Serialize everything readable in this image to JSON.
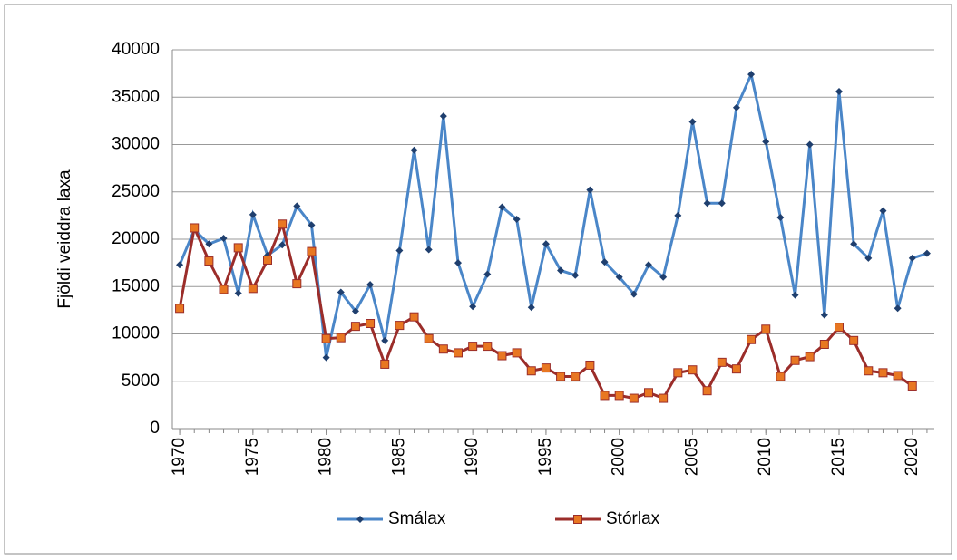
{
  "chart_data": {
    "type": "line",
    "y_label": "Fjöldi veiddra laxa",
    "x": [
      1970,
      1971,
      1972,
      1973,
      1974,
      1975,
      1976,
      1977,
      1978,
      1979,
      1980,
      1981,
      1982,
      1983,
      1984,
      1985,
      1986,
      1987,
      1988,
      1989,
      1990,
      1991,
      1992,
      1993,
      1994,
      1995,
      1996,
      1997,
      1998,
      1999,
      2000,
      2001,
      2002,
      2003,
      2004,
      2005,
      2006,
      2007,
      2008,
      2009,
      2010,
      2011,
      2012,
      2013,
      2014,
      2015,
      2016,
      2017,
      2018,
      2019,
      2020,
      2021
    ],
    "series": [
      {
        "name": "Smálax",
        "color": "#4a86c8",
        "marker_color": "#1f3f6e",
        "values": [
          17300,
          21000,
          19500,
          20100,
          14300,
          22600,
          18300,
          19400,
          23500,
          21500,
          7500,
          14400,
          12400,
          15200,
          9300,
          18800,
          29400,
          18900,
          33000,
          17500,
          12900,
          16300,
          23400,
          22100,
          12800,
          19500,
          16700,
          16200,
          25200,
          17600,
          16000,
          14200,
          17300,
          16000,
          22500,
          32400,
          23800,
          23800,
          33900,
          37400,
          30300,
          22300,
          14100,
          30000,
          12000,
          35600,
          19500,
          18000,
          23000,
          12700,
          18000,
          18500
        ]
      },
      {
        "name": "Stórlax",
        "color": "#9b2d2a",
        "marker_color": "#e87722",
        "values": [
          12700,
          21200,
          17700,
          14700,
          19100,
          14800,
          17800,
          21600,
          15300,
          18700,
          9500,
          9600,
          10800,
          11100,
          6800,
          10900,
          11800,
          9500,
          8400,
          8000,
          8700,
          8700,
          7700,
          8000,
          6100,
          6400,
          5500,
          5500,
          6700,
          3500,
          3500,
          3200,
          3800,
          3200,
          5900,
          6200,
          4000,
          7000,
          6300,
          9400,
          10500,
          5500,
          7200,
          7600,
          8900,
          10700,
          9300,
          6100,
          5900,
          5600,
          4500,
          null
        ]
      }
    ],
    "xlim": [
      1969.5,
      2021.5
    ],
    "xticks": [
      1970,
      1975,
      1980,
      1985,
      1990,
      1995,
      2000,
      2005,
      2010,
      2015,
      2020
    ],
    "ylim": [
      0,
      40000
    ],
    "yticks": [
      0,
      5000,
      10000,
      15000,
      20000,
      25000,
      30000,
      35000,
      40000
    ],
    "grid": true,
    "legend": "bottom"
  }
}
